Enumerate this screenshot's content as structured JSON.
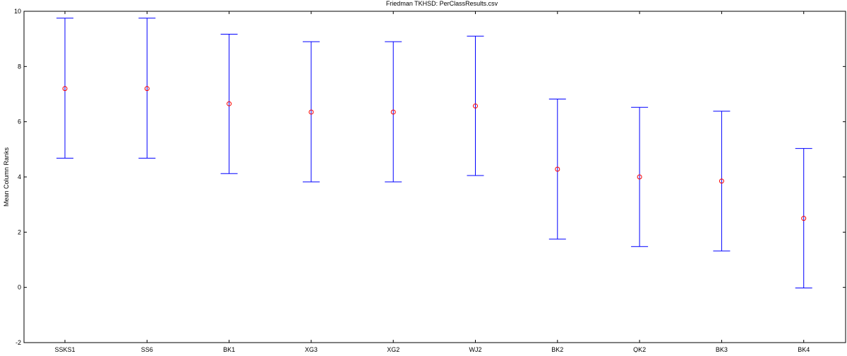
{
  "chart_data": {
    "type": "errorbar",
    "title": "Friedman TKHSD: PerClassResults.csv",
    "xlabel": "",
    "ylabel": "Mean Column Ranks",
    "ylim": [
      -2,
      10
    ],
    "yticks": [
      "-2",
      "0",
      "2",
      "4",
      "6",
      "8",
      "10"
    ],
    "grid": false,
    "categories": [
      "SSKS1",
      "SS6",
      "BK1",
      "XG3",
      "XG2",
      "WJ2",
      "BK2",
      "QK2",
      "BK3",
      "BK4"
    ],
    "means": [
      7.2,
      7.2,
      6.65,
      6.35,
      6.35,
      6.57,
      4.28,
      4.0,
      3.85,
      2.5
    ],
    "lower": [
      4.68,
      4.68,
      4.12,
      3.82,
      3.82,
      4.05,
      1.75,
      1.48,
      1.32,
      -0.02
    ],
    "upper": [
      9.75,
      9.75,
      9.17,
      8.9,
      8.9,
      9.1,
      6.82,
      6.52,
      6.38,
      5.03
    ],
    "colors": {
      "error_bar": "#0000ff",
      "marker": "#ff0000",
      "axes": "#000000",
      "background": "#ffffff"
    }
  }
}
